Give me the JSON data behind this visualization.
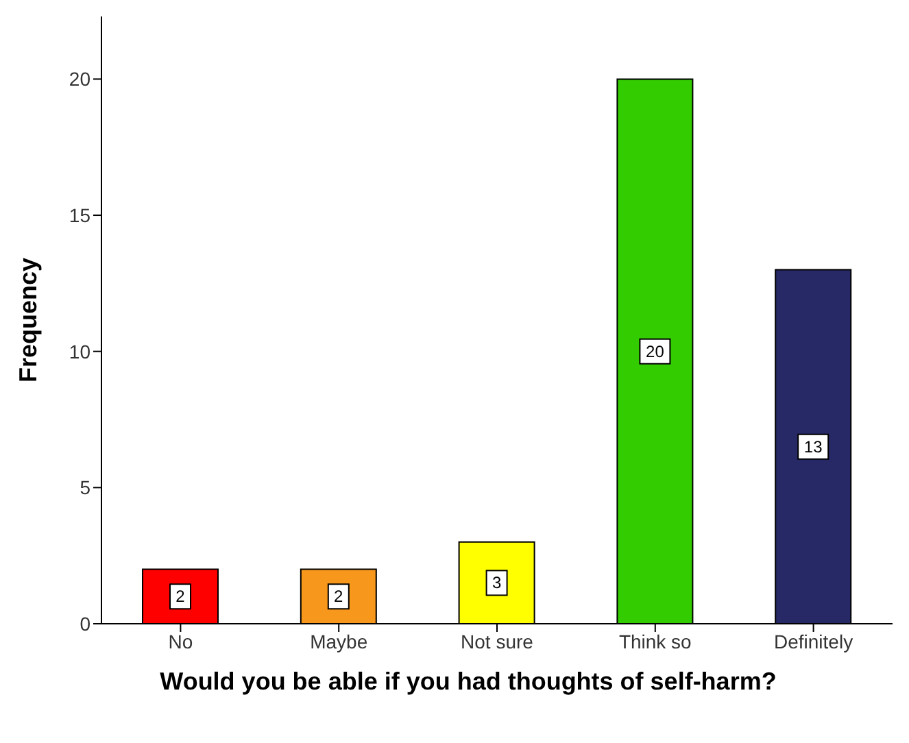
{
  "chart_data": {
    "type": "bar",
    "xlabel": "Would you be able if you had thoughts of self-harm?",
    "ylabel": "Frequency",
    "categories": [
      "No",
      "Maybe",
      "Not sure",
      "Think so",
      "Definitely"
    ],
    "values": [
      2,
      2,
      3,
      20,
      13
    ],
    "colors": [
      "#ff0000",
      "#f7981d",
      "#ffff00",
      "#33cc00",
      "#262966"
    ],
    "ylim": [
      0,
      22.3
    ],
    "yticks": [
      0,
      5,
      10,
      15,
      20
    ],
    "data_labels": true,
    "grid": false,
    "legend": false
  }
}
